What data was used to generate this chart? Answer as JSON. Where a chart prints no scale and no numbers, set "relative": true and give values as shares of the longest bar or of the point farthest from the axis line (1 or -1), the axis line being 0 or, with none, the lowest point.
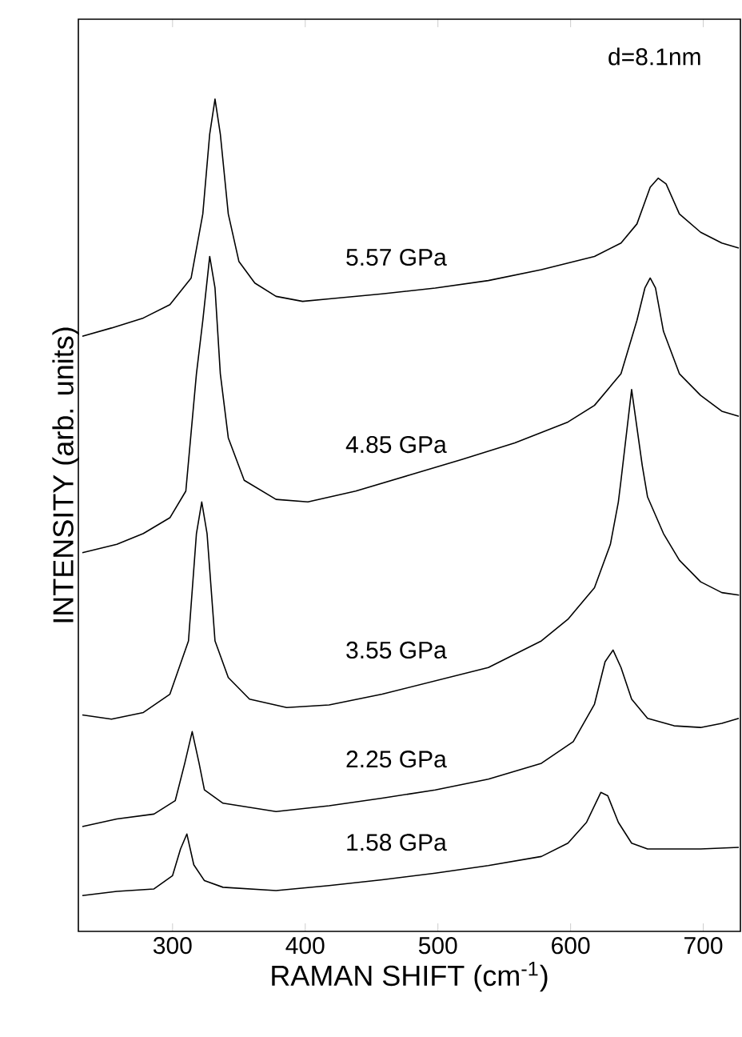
{
  "chart_data": {
    "type": "line",
    "relative": true,
    "xlabel": "RAMAN SHIFT (cm$^{-1}$)",
    "ylabel": "INTENSITY (arb. units)",
    "xlim": [
      229,
      728
    ],
    "xticks": [
      300,
      400,
      500,
      600,
      700
    ],
    "grid": false,
    "legend": false,
    "annotations": [
      "d=8.1nm"
    ],
    "series": [
      {
        "name": "5.57 GPa",
        "color": "#000000",
        "x": [
          232,
          254,
          278,
          298,
          314,
          322.8,
          328,
          332,
          336,
          342,
          350,
          362,
          378,
          398,
          418,
          458,
          498,
          538,
          578,
          618,
          638,
          650,
          660,
          666,
          672,
          682,
          698,
          714,
          726.8
        ],
        "values": [
          0.715,
          0.725,
          0.737,
          0.753,
          0.785,
          0.862,
          0.958,
          1.0,
          0.958,
          0.862,
          0.805,
          0.779,
          0.763,
          0.757,
          0.76,
          0.766,
          0.773,
          0.782,
          0.795,
          0.811,
          0.827,
          0.85,
          0.894,
          0.905,
          0.898,
          0.862,
          0.84,
          0.827,
          0.821
        ]
      },
      {
        "name": "4.85 GPa",
        "color": "#000000",
        "x": [
          232,
          258,
          278,
          298,
          310,
          318,
          322.8,
          328,
          332,
          336,
          342,
          354,
          378,
          402,
          438,
          478,
          518,
          558,
          598,
          618,
          638,
          650,
          656,
          660,
          664,
          670,
          682,
          698,
          714,
          726.8
        ],
        "values": [
          0.455,
          0.465,
          0.478,
          0.497,
          0.529,
          0.67,
          0.734,
          0.811,
          0.773,
          0.67,
          0.593,
          0.542,
          0.519,
          0.516,
          0.529,
          0.548,
          0.567,
          0.587,
          0.612,
          0.632,
          0.67,
          0.734,
          0.773,
          0.785,
          0.773,
          0.721,
          0.67,
          0.644,
          0.625,
          0.619
        ]
      },
      {
        "name": "3.55 GPa",
        "color": "#000000",
        "x": [
          232,
          254,
          278,
          298,
          312,
          318,
          322,
          326,
          332,
          342,
          358,
          386,
          418,
          458,
          498,
          538,
          578,
          598,
          618,
          630,
          636,
          638,
          646,
          654,
          658,
          670,
          682,
          698,
          714,
          727
        ],
        "values": [
          0.26,
          0.255,
          0.263,
          0.285,
          0.349,
          0.478,
          0.516,
          0.478,
          0.349,
          0.305,
          0.279,
          0.269,
          0.272,
          0.285,
          0.301,
          0.317,
          0.349,
          0.375,
          0.413,
          0.465,
          0.516,
          0.542,
          0.651,
          0.56,
          0.522,
          0.478,
          0.446,
          0.42,
          0.407,
          0.404
        ]
      },
      {
        "name": "2.25 GPa",
        "color": "#000000",
        "x": [
          232,
          258,
          286,
          302,
          309.2,
          314.8,
          320,
          324,
          338,
          378,
          418,
          458,
          498,
          538,
          578,
          602,
          618,
          626,
          632,
          638,
          646,
          658,
          678,
          698,
          714,
          726.8
        ],
        "values": [
          0.126,
          0.135,
          0.141,
          0.157,
          0.202,
          0.24,
          0.202,
          0.17,
          0.154,
          0.144,
          0.151,
          0.16,
          0.17,
          0.183,
          0.202,
          0.228,
          0.273,
          0.324,
          0.338,
          0.317,
          0.279,
          0.256,
          0.247,
          0.245,
          0.25,
          0.256
        ]
      },
      {
        "name": "1.58 GPa",
        "color": "#000000",
        "x": [
          232,
          258,
          286,
          300,
          306,
          310.8,
          316,
          324,
          338,
          378,
          418,
          458,
          498,
          538,
          578,
          598,
          612,
          622.8,
          628,
          636,
          646,
          658,
          678,
          698,
          726.8
        ],
        "values": [
          0.043,
          0.048,
          0.051,
          0.067,
          0.099,
          0.117,
          0.08,
          0.061,
          0.053,
          0.049,
          0.055,
          0.062,
          0.07,
          0.079,
          0.09,
          0.106,
          0.131,
          0.167,
          0.163,
          0.131,
          0.106,
          0.099,
          0.099,
          0.099,
          0.101
        ]
      }
    ]
  }
}
